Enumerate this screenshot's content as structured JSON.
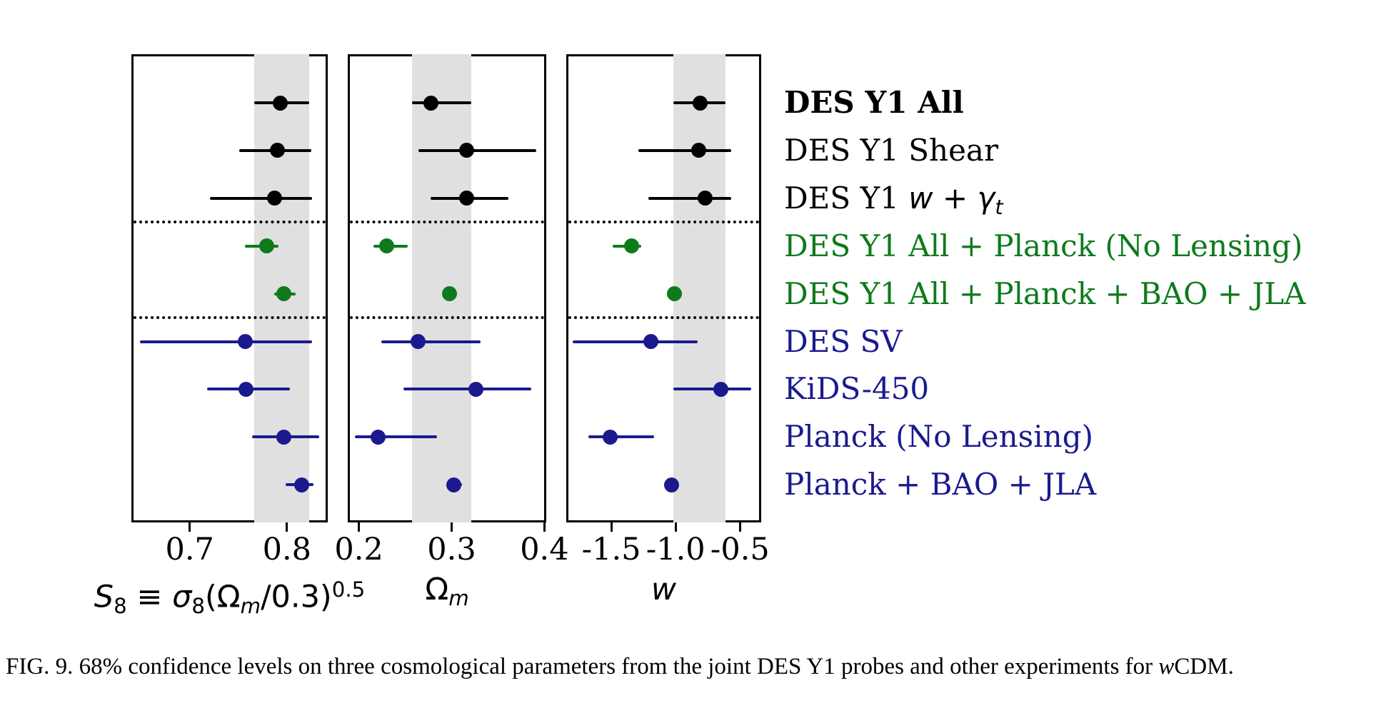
{
  "colors": {
    "des_black": "#000000",
    "combined_green": "#0f7a1c",
    "external_navy": "#1a1a8e",
    "band_gray": "#e0e0e0"
  },
  "experiments": [
    {
      "name": "DES Y1 All",
      "group": "des_black",
      "bold": true,
      "label_segments": [
        {
          "t": "DES Y1 All",
          "s": "n"
        }
      ]
    },
    {
      "name": "DES Y1 Shear",
      "group": "des_black",
      "bold": false,
      "label_segments": [
        {
          "t": "DES Y1 Shear",
          "s": "n"
        }
      ]
    },
    {
      "name": "DES Y1 w + gamma_t",
      "group": "des_black",
      "bold": false,
      "label_segments": [
        {
          "t": "DES Y1 ",
          "s": "n"
        },
        {
          "t": "w",
          "s": "i"
        },
        {
          "t": " + ",
          "s": "mn"
        },
        {
          "t": "γ",
          "s": "i"
        },
        {
          "t": "t",
          "s": "isub"
        }
      ]
    },
    {
      "name": "DES Y1 All + Planck (No Lensing)",
      "group": "combined_green",
      "bold": false,
      "label_segments": [
        {
          "t": "DES Y1 All + Planck (No Lensing)",
          "s": "n"
        }
      ]
    },
    {
      "name": "DES Y1 All + Planck + BAO + JLA",
      "group": "combined_green",
      "bold": false,
      "label_segments": [
        {
          "t": "DES Y1 All + Planck + BAO + JLA",
          "s": "n"
        }
      ]
    },
    {
      "name": "DES SV",
      "group": "external_navy",
      "bold": false,
      "label_segments": [
        {
          "t": "DES SV",
          "s": "n"
        }
      ]
    },
    {
      "name": "KiDS-450",
      "group": "external_navy",
      "bold": false,
      "label_segments": [
        {
          "t": "KiDS-450",
          "s": "n"
        }
      ]
    },
    {
      "name": "Planck (No Lensing)",
      "group": "external_navy",
      "bold": false,
      "label_segments": [
        {
          "t": "Planck (No Lensing)",
          "s": "n"
        }
      ]
    },
    {
      "name": "Planck + BAO + JLA",
      "group": "external_navy",
      "bold": false,
      "label_segments": [
        {
          "t": "Planck + BAO + JLA",
          "s": "n"
        }
      ]
    }
  ],
  "separators_after_rows": [
    3,
    5
  ],
  "chart_data": {
    "type": "scatter",
    "subtype": "forest-plot-errorbars",
    "title": "",
    "grid": false,
    "legend_position": "right-side-row-labels",
    "rows": [
      "DES Y1 All",
      "DES Y1 Shear",
      "DES Y1 w + gamma_t",
      "DES Y1 All + Planck (No Lensing)",
      "DES Y1 All + Planck + BAO + JLA",
      "DES SV",
      "KiDS-450",
      "Planck (No Lensing)",
      "Planck + BAO + JLA"
    ],
    "panels": [
      {
        "param": "S_8",
        "xlabel_segments": [
          {
            "t": "S",
            "s": "i"
          },
          {
            "t": "8",
            "s": "sub"
          },
          {
            "t": " ≡ ",
            "s": "mn"
          },
          {
            "t": "σ",
            "s": "i"
          },
          {
            "t": "8",
            "s": "sub"
          },
          {
            "t": "(Ω",
            "s": "mn"
          },
          {
            "t": "m",
            "s": "isub"
          },
          {
            "t": "/0.3)",
            "s": "mn"
          },
          {
            "t": "0.5",
            "s": "sup"
          }
        ],
        "xlim": [
          0.64,
          0.842
        ],
        "ticks": [
          {
            "v": 0.7,
            "label": "0.7"
          },
          {
            "v": 0.8,
            "label": "0.8"
          }
        ],
        "band": [
          0.766,
          0.823
        ],
        "points": [
          {
            "v": 0.793,
            "lo": 0.766,
            "hi": 0.823
          },
          {
            "v": 0.79,
            "lo": 0.751,
            "hi": 0.825
          },
          {
            "v": 0.787,
            "lo": 0.721,
            "hi": 0.826
          },
          {
            "v": 0.779,
            "lo": 0.757,
            "hi": 0.791
          },
          {
            "v": 0.797,
            "lo": 0.787,
            "hi": 0.809
          },
          {
            "v": 0.757,
            "lo": 0.649,
            "hi": 0.826
          },
          {
            "v": 0.758,
            "lo": 0.718,
            "hi": 0.803
          },
          {
            "v": 0.797,
            "lo": 0.764,
            "hi": 0.833
          },
          {
            "v": 0.815,
            "lo": 0.799,
            "hi": 0.827
          }
        ]
      },
      {
        "param": "Omega_m",
        "xlabel_segments": [
          {
            "t": "Ω",
            "s": "mn"
          },
          {
            "t": "m",
            "s": "isub"
          }
        ],
        "xlim": [
          0.188,
          0.402
        ],
        "ticks": [
          {
            "v": 0.2,
            "label": "0.2"
          },
          {
            "v": 0.3,
            "label": "0.3"
          },
          {
            "v": 0.4,
            "label": "0.4"
          }
        ],
        "band": [
          0.257,
          0.321
        ],
        "points": [
          {
            "v": 0.278,
            "lo": 0.257,
            "hi": 0.321
          },
          {
            "v": 0.316,
            "lo": 0.264,
            "hi": 0.391
          },
          {
            "v": 0.316,
            "lo": 0.277,
            "hi": 0.361
          },
          {
            "v": 0.23,
            "lo": 0.216,
            "hi": 0.253
          },
          {
            "v": 0.298,
            "lo": 0.292,
            "hi": 0.306
          },
          {
            "v": 0.264,
            "lo": 0.224,
            "hi": 0.331
          },
          {
            "v": 0.326,
            "lo": 0.248,
            "hi": 0.386
          },
          {
            "v": 0.221,
            "lo": 0.196,
            "hi": 0.284
          },
          {
            "v": 0.302,
            "lo": 0.294,
            "hi": 0.311
          }
        ]
      },
      {
        "param": "w",
        "xlabel_segments": [
          {
            "t": "w",
            "s": "i"
          }
        ],
        "xlim": [
          -1.85,
          -0.335
        ],
        "ticks": [
          {
            "v": -1.5,
            "label": "-1.5"
          },
          {
            "v": -1.0,
            "label": "-1.0"
          },
          {
            "v": -0.5,
            "label": "-0.5"
          }
        ],
        "band": [
          -1.02,
          -0.61
        ],
        "points": [
          {
            "v": -0.81,
            "lo": -1.02,
            "hi": -0.61
          },
          {
            "v": -0.82,
            "lo": -1.29,
            "hi": -0.57
          },
          {
            "v": -0.77,
            "lo": -1.21,
            "hi": -0.57
          },
          {
            "v": -1.34,
            "lo": -1.49,
            "hi": -1.27
          },
          {
            "v": -1.01,
            "lo": -1.05,
            "hi": -0.96
          },
          {
            "v": -1.19,
            "lo": -1.8,
            "hi": -0.83
          },
          {
            "v": -0.65,
            "lo": -1.02,
            "hi": -0.41
          },
          {
            "v": -1.51,
            "lo": -1.68,
            "hi": -1.17
          },
          {
            "v": -1.03,
            "lo": -1.08,
            "hi": -0.98
          }
        ]
      }
    ]
  },
  "caption_segments": [
    {
      "t": "FIG. 9. 68% confidence levels on three cosmological parameters from the joint DES Y1 probes and other experiments for ",
      "s": "cn"
    },
    {
      "t": "w",
      "s": "ci"
    },
    {
      "t": "CDM.",
      "s": "cn"
    }
  ]
}
